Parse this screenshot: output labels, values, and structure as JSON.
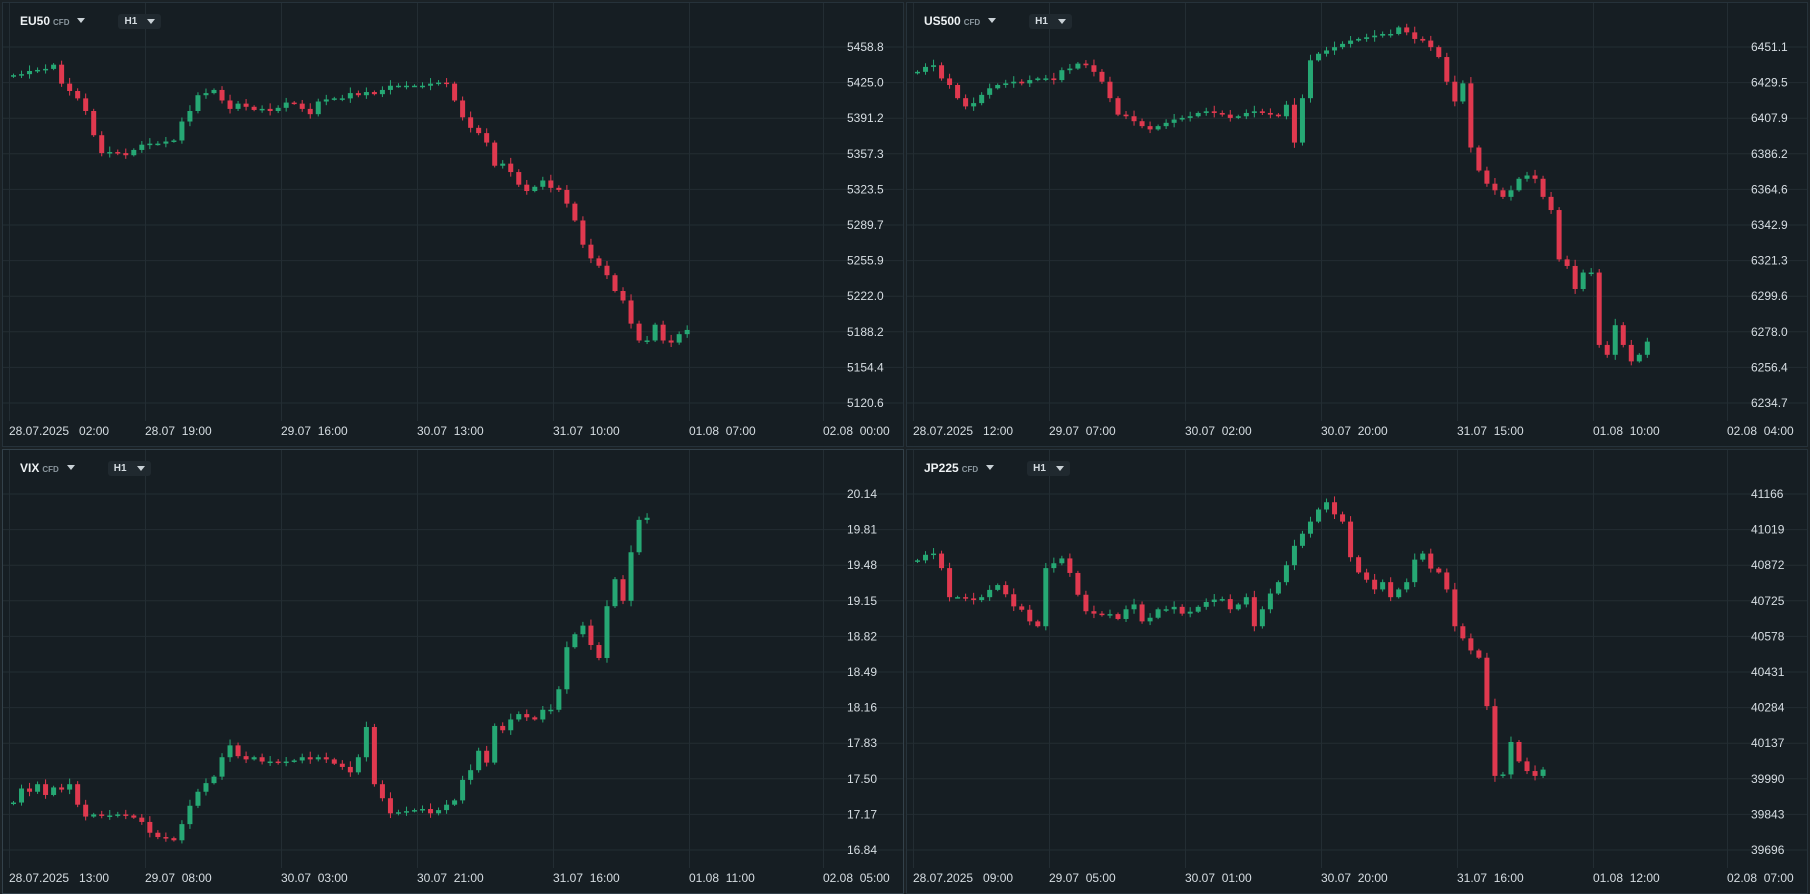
{
  "colors": {
    "background": "#161e23",
    "grid": "#232d33",
    "bullish": "#26a874",
    "bearish": "#e0394f",
    "text": "#d6dde2"
  },
  "icons": {
    "dropdown": "chevron-down-icon"
  },
  "panels": [
    {
      "symbol": "EU50",
      "type": "CFD",
      "timeframe": "H1",
      "price_labels": [
        "5458.8",
        "5425.0",
        "5391.2",
        "5357.3",
        "5323.5",
        "5289.7",
        "5255.9",
        "5222.0",
        "5188.2",
        "5154.4",
        "5120.6"
      ],
      "time_labels": [
        "28.07.2025   02:00",
        "28.07  19:00",
        "29.07  16:00",
        "30.07  13:00",
        "31.07  10:00",
        "01.08  07:00",
        "02.08  00:00"
      ]
    },
    {
      "symbol": "US500",
      "type": "CFD",
      "timeframe": "H1",
      "price_labels": [
        "6451.1",
        "6429.5",
        "6407.9",
        "6386.2",
        "6364.6",
        "6342.9",
        "6321.3",
        "6299.6",
        "6278.0",
        "6256.4",
        "6234.7"
      ],
      "time_labels": [
        "28.07.2025   12:00",
        "29.07  07:00",
        "30.07  02:00",
        "30.07  20:00",
        "31.07  15:00",
        "01.08  10:00",
        "02.08  04:00"
      ]
    },
    {
      "symbol": "VIX",
      "type": "CFD",
      "timeframe": "H1",
      "price_labels": [
        "20.14",
        "19.81",
        "19.48",
        "19.15",
        "18.82",
        "18.49",
        "18.16",
        "17.83",
        "17.50",
        "17.17",
        "16.84"
      ],
      "time_labels": [
        "28.07.2025   13:00",
        "29.07  08:00",
        "30.07  03:00",
        "30.07  21:00",
        "31.07  16:00",
        "01.08  11:00",
        "02.08  05:00"
      ]
    },
    {
      "symbol": "JP225",
      "type": "CFD",
      "timeframe": "H1",
      "price_labels": [
        "41166",
        "41019",
        "40872",
        "40725",
        "40578",
        "40431",
        "40284",
        "40137",
        "39990",
        "39843",
        "39696"
      ],
      "time_labels": [
        "28.07.2025   09:00",
        "29.07  05:00",
        "30.07  01:00",
        "30.07  20:00",
        "31.07  16:00",
        "01.08  12:00",
        "02.08  07:00"
      ]
    }
  ],
  "chart_data": [
    {
      "type": "candlestick",
      "symbol": "EU50",
      "ylim": [
        5120.6,
        5458.8
      ],
      "grid": true,
      "close": [
        5432,
        5433,
        5436,
        5437,
        5438,
        5442,
        5424,
        5417,
        5410,
        5398,
        5375,
        5358,
        5359,
        5358,
        5356,
        5361,
        5366,
        5367,
        5367,
        5369,
        5370,
        5388,
        5398,
        5413,
        5415,
        5418,
        5408,
        5400,
        5405,
        5402,
        5399,
        5400,
        5398,
        5401,
        5406,
        5405,
        5400,
        5395,
        5407,
        5409,
        5410,
        5410,
        5415,
        5413,
        5416,
        5414,
        5418,
        5422,
        5422,
        5422,
        5422,
        5422,
        5424,
        5425,
        5424,
        5408,
        5392,
        5382,
        5377,
        5368,
        5346,
        5348,
        5340,
        5328,
        5322,
        5326,
        5332,
        5325,
        5323,
        5310,
        5294,
        5271,
        5258,
        5251,
        5242,
        5227,
        5218,
        5196,
        5180,
        5180,
        5195,
        5180,
        5178,
        5186,
        5190
      ]
    },
    {
      "type": "candlestick",
      "symbol": "US500",
      "ylim": [
        6234.7,
        6451.1
      ],
      "grid": true,
      "close": [
        6436,
        6439,
        6440,
        6432,
        6428,
        6420,
        6415,
        6417,
        6422,
        6426,
        6428,
        6429,
        6430,
        6429,
        6431,
        6432,
        6432,
        6431,
        6437,
        6438,
        6441,
        6440,
        6436,
        6430,
        6420,
        6410,
        6409,
        6406,
        6403,
        6401,
        6403,
        6405,
        6407,
        6408,
        6409,
        6411,
        6412,
        6411,
        6410,
        6408,
        6409,
        6411,
        6412,
        6411,
        6410,
        6409,
        6416,
        6393,
        6420,
        6443,
        6447,
        6449,
        6451,
        6453,
        6455,
        6456,
        6457,
        6458,
        6459,
        6459,
        6463,
        6460,
        6456,
        6455,
        6451,
        6445,
        6430,
        6418,
        6429,
        6390,
        6376,
        6368,
        6364,
        6360,
        6364,
        6371,
        6373,
        6371,
        6360,
        6352,
        6322,
        6318,
        6304,
        6314,
        6314,
        6270,
        6264,
        6282,
        6270,
        6260,
        6264,
        6272
      ]
    },
    {
      "type": "candlestick",
      "symbol": "VIX",
      "ylim": [
        16.84,
        20.14
      ],
      "grid": true,
      "close": [
        17.28,
        17.41,
        17.38,
        17.45,
        17.35,
        17.42,
        17.4,
        17.45,
        17.26,
        17.15,
        17.17,
        17.16,
        17.16,
        17.17,
        17.16,
        17.14,
        17.1,
        17.0,
        16.96,
        16.95,
        16.93,
        17.08,
        17.25,
        17.38,
        17.46,
        17.52,
        17.7,
        17.81,
        17.71,
        17.68,
        17.7,
        17.66,
        17.66,
        17.65,
        17.66,
        17.67,
        17.7,
        17.68,
        17.7,
        17.68,
        17.64,
        17.61,
        17.56,
        17.7,
        17.98,
        17.45,
        17.32,
        17.18,
        17.19,
        17.2,
        17.21,
        17.22,
        17.18,
        17.21,
        17.26,
        17.3,
        17.49,
        17.58,
        17.76,
        17.65,
        17.99,
        17.95,
        18.05,
        18.1,
        18.07,
        18.05,
        18.14,
        18.14,
        18.33,
        18.72,
        18.84,
        18.92,
        18.74,
        18.62,
        19.1,
        19.35,
        19.15,
        19.6,
        19.9,
        19.92
      ]
    },
    {
      "type": "candlestick",
      "symbol": "JP225",
      "ylim": [
        39696,
        41166
      ],
      "grid": true,
      "close": [
        40892,
        40915,
        40920,
        40860,
        40740,
        40740,
        40735,
        40728,
        40740,
        40770,
        40790,
        40752,
        40702,
        40688,
        40640,
        40620,
        40860,
        40880,
        40900,
        40840,
        40750,
        40682,
        40672,
        40668,
        40670,
        40650,
        40690,
        40710,
        40640,
        40655,
        40690,
        40690,
        40700,
        40672,
        40680,
        40700,
        40720,
        40730,
        40732,
        40690,
        40710,
        40740,
        40620,
        40690,
        40755,
        40802,
        40872,
        40952,
        41002,
        41052,
        41102,
        41132,
        41082,
        41052,
        40905,
        40842,
        40812,
        40772,
        40802,
        40740,
        40772,
        40802,
        40895,
        40920,
        40858,
        40842,
        40772,
        40620,
        40570,
        40520,
        40490,
        40290,
        40002,
        40008,
        40142,
        40062,
        40022,
        40002,
        40028
      ]
    }
  ]
}
